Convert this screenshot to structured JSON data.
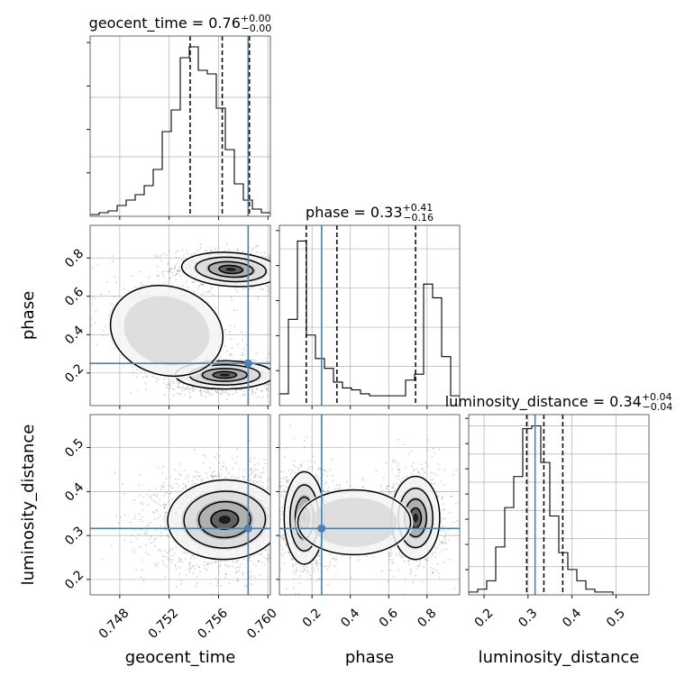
{
  "chart_data": {
    "type": "corner",
    "parameters": [
      "geocent_time",
      "phase",
      "luminosity_distance"
    ],
    "axis_labels": {
      "x": [
        "geocent_time",
        "phase",
        "luminosity_distance"
      ],
      "y": [
        "phase",
        "luminosity_distance"
      ]
    },
    "ranges": {
      "geocent_time": [
        0.7456,
        0.7602
      ],
      "phase": [
        0.03,
        0.97
      ],
      "luminosity_distance": [
        0.165,
        0.575
      ]
    },
    "ticks": {
      "geocent_time": [
        0.748,
        0.752,
        0.756,
        0.76
      ],
      "phase": [
        0.2,
        0.4,
        0.6,
        0.8
      ],
      "luminosity_distance": [
        0.2,
        0.3,
        0.4,
        0.5
      ]
    },
    "tick_labels": {
      "geocent_time": [
        "0.748",
        "0.752",
        "0.756",
        "0.760"
      ],
      "phase": [
        "0.2",
        "0.4",
        "0.6",
        "0.8"
      ],
      "luminosity_distance": [
        "0.2",
        "0.3",
        "0.4",
        "0.5"
      ]
    },
    "titles": [
      {
        "param": "geocent_time",
        "text": "geocent_time = 0.76",
        "sup": "+0.00",
        "sub": "−0.00"
      },
      {
        "param": "phase",
        "text": "phase = 0.33",
        "sup": "+0.41",
        "sub": "−0.16"
      },
      {
        "param": "luminosity_distance",
        "text": "luminosity_distance = 0.34",
        "sup": "+0.04",
        "sub": "−0.04"
      }
    ],
    "quantiles": {
      "geocent_time": [
        0.7537,
        0.7563,
        0.7585
      ],
      "phase": [
        0.17,
        0.33,
        0.74
      ],
      "luminosity_distance": [
        0.297,
        0.336,
        0.379
      ]
    },
    "truths": {
      "geocent_time": 0.7584,
      "phase": 0.25,
      "luminosity_distance": 0.316
    },
    "histograms": {
      "geocent_time": {
        "edges_range": [
          0.7456,
          0.7602
        ],
        "bins": 20,
        "counts": [
          1,
          2,
          3,
          6,
          9,
          12,
          17,
          26,
          47,
          59,
          88,
          94,
          81,
          79,
          60,
          37,
          18,
          9,
          4,
          2
        ]
      },
      "phase": {
        "edges_range": [
          0.03,
          0.97
        ],
        "bins": 20,
        "counts": [
          6,
          44,
          84,
          36,
          24,
          19,
          12,
          9,
          8,
          6,
          5,
          5,
          5,
          5,
          13,
          16,
          62,
          55,
          25,
          5
        ]
      },
      "luminosity_distance": {
        "edges_range": [
          0.165,
          0.575
        ],
        "bins": 20,
        "counts": [
          1,
          2,
          5,
          17,
          31,
          42,
          59,
          60,
          47,
          28,
          15,
          9,
          5,
          2,
          1,
          1,
          0,
          0,
          0,
          0
        ]
      }
    },
    "hist_ylim": {
      "geocent_time": [
        0,
        100
      ],
      "phase": [
        0,
        92
      ],
      "luminosity_distance": [
        0,
        64
      ]
    },
    "hist_grid_levels": {
      "geocent_time": [
        33,
        66
      ],
      "phase": [
        20,
        40,
        60,
        80
      ],
      "luminosity_distance": [
        10,
        20,
        30,
        40,
        50,
        60
      ]
    },
    "scatter_2d": [
      {
        "x": "geocent_time",
        "y": "phase",
        "blobs": [
          {
            "cx": 0.757,
            "cy": 0.74,
            "sx": 0.0019,
            "sy": 0.042,
            "rho": -0.1,
            "n": 950
          },
          {
            "cx": 0.7565,
            "cy": 0.19,
            "sx": 0.0019,
            "sy": 0.035,
            "rho": 0.0,
            "n": 1300
          },
          {
            "cx": 0.7518,
            "cy": 0.42,
            "sx": 0.0022,
            "sy": 0.11,
            "rho": -0.45,
            "n": 550
          }
        ]
      },
      {
        "x": "geocent_time",
        "y": "luminosity_distance",
        "blobs": [
          {
            "cx": 0.7565,
            "cy": 0.336,
            "sx": 0.0022,
            "sy": 0.043,
            "rho": 0.05,
            "n": 2500
          }
        ]
      },
      {
        "x": "phase",
        "y": "luminosity_distance",
        "blobs": [
          {
            "cx": 0.16,
            "cy": 0.34,
            "sx": 0.05,
            "sy": 0.05,
            "rho": 0.0,
            "n": 1100
          },
          {
            "cx": 0.74,
            "cy": 0.34,
            "sx": 0.06,
            "sy": 0.045,
            "rho": 0.0,
            "n": 900
          },
          {
            "cx": 0.42,
            "cy": 0.33,
            "sx": 0.14,
            "sy": 0.035,
            "rho": 0.0,
            "n": 450
          }
        ]
      }
    ],
    "grid": true,
    "colors": {
      "truth": "#4682b4",
      "hist": "#000000",
      "scatter": "#555555",
      "contour": "#000000",
      "grid": "#b0b0b0"
    }
  }
}
